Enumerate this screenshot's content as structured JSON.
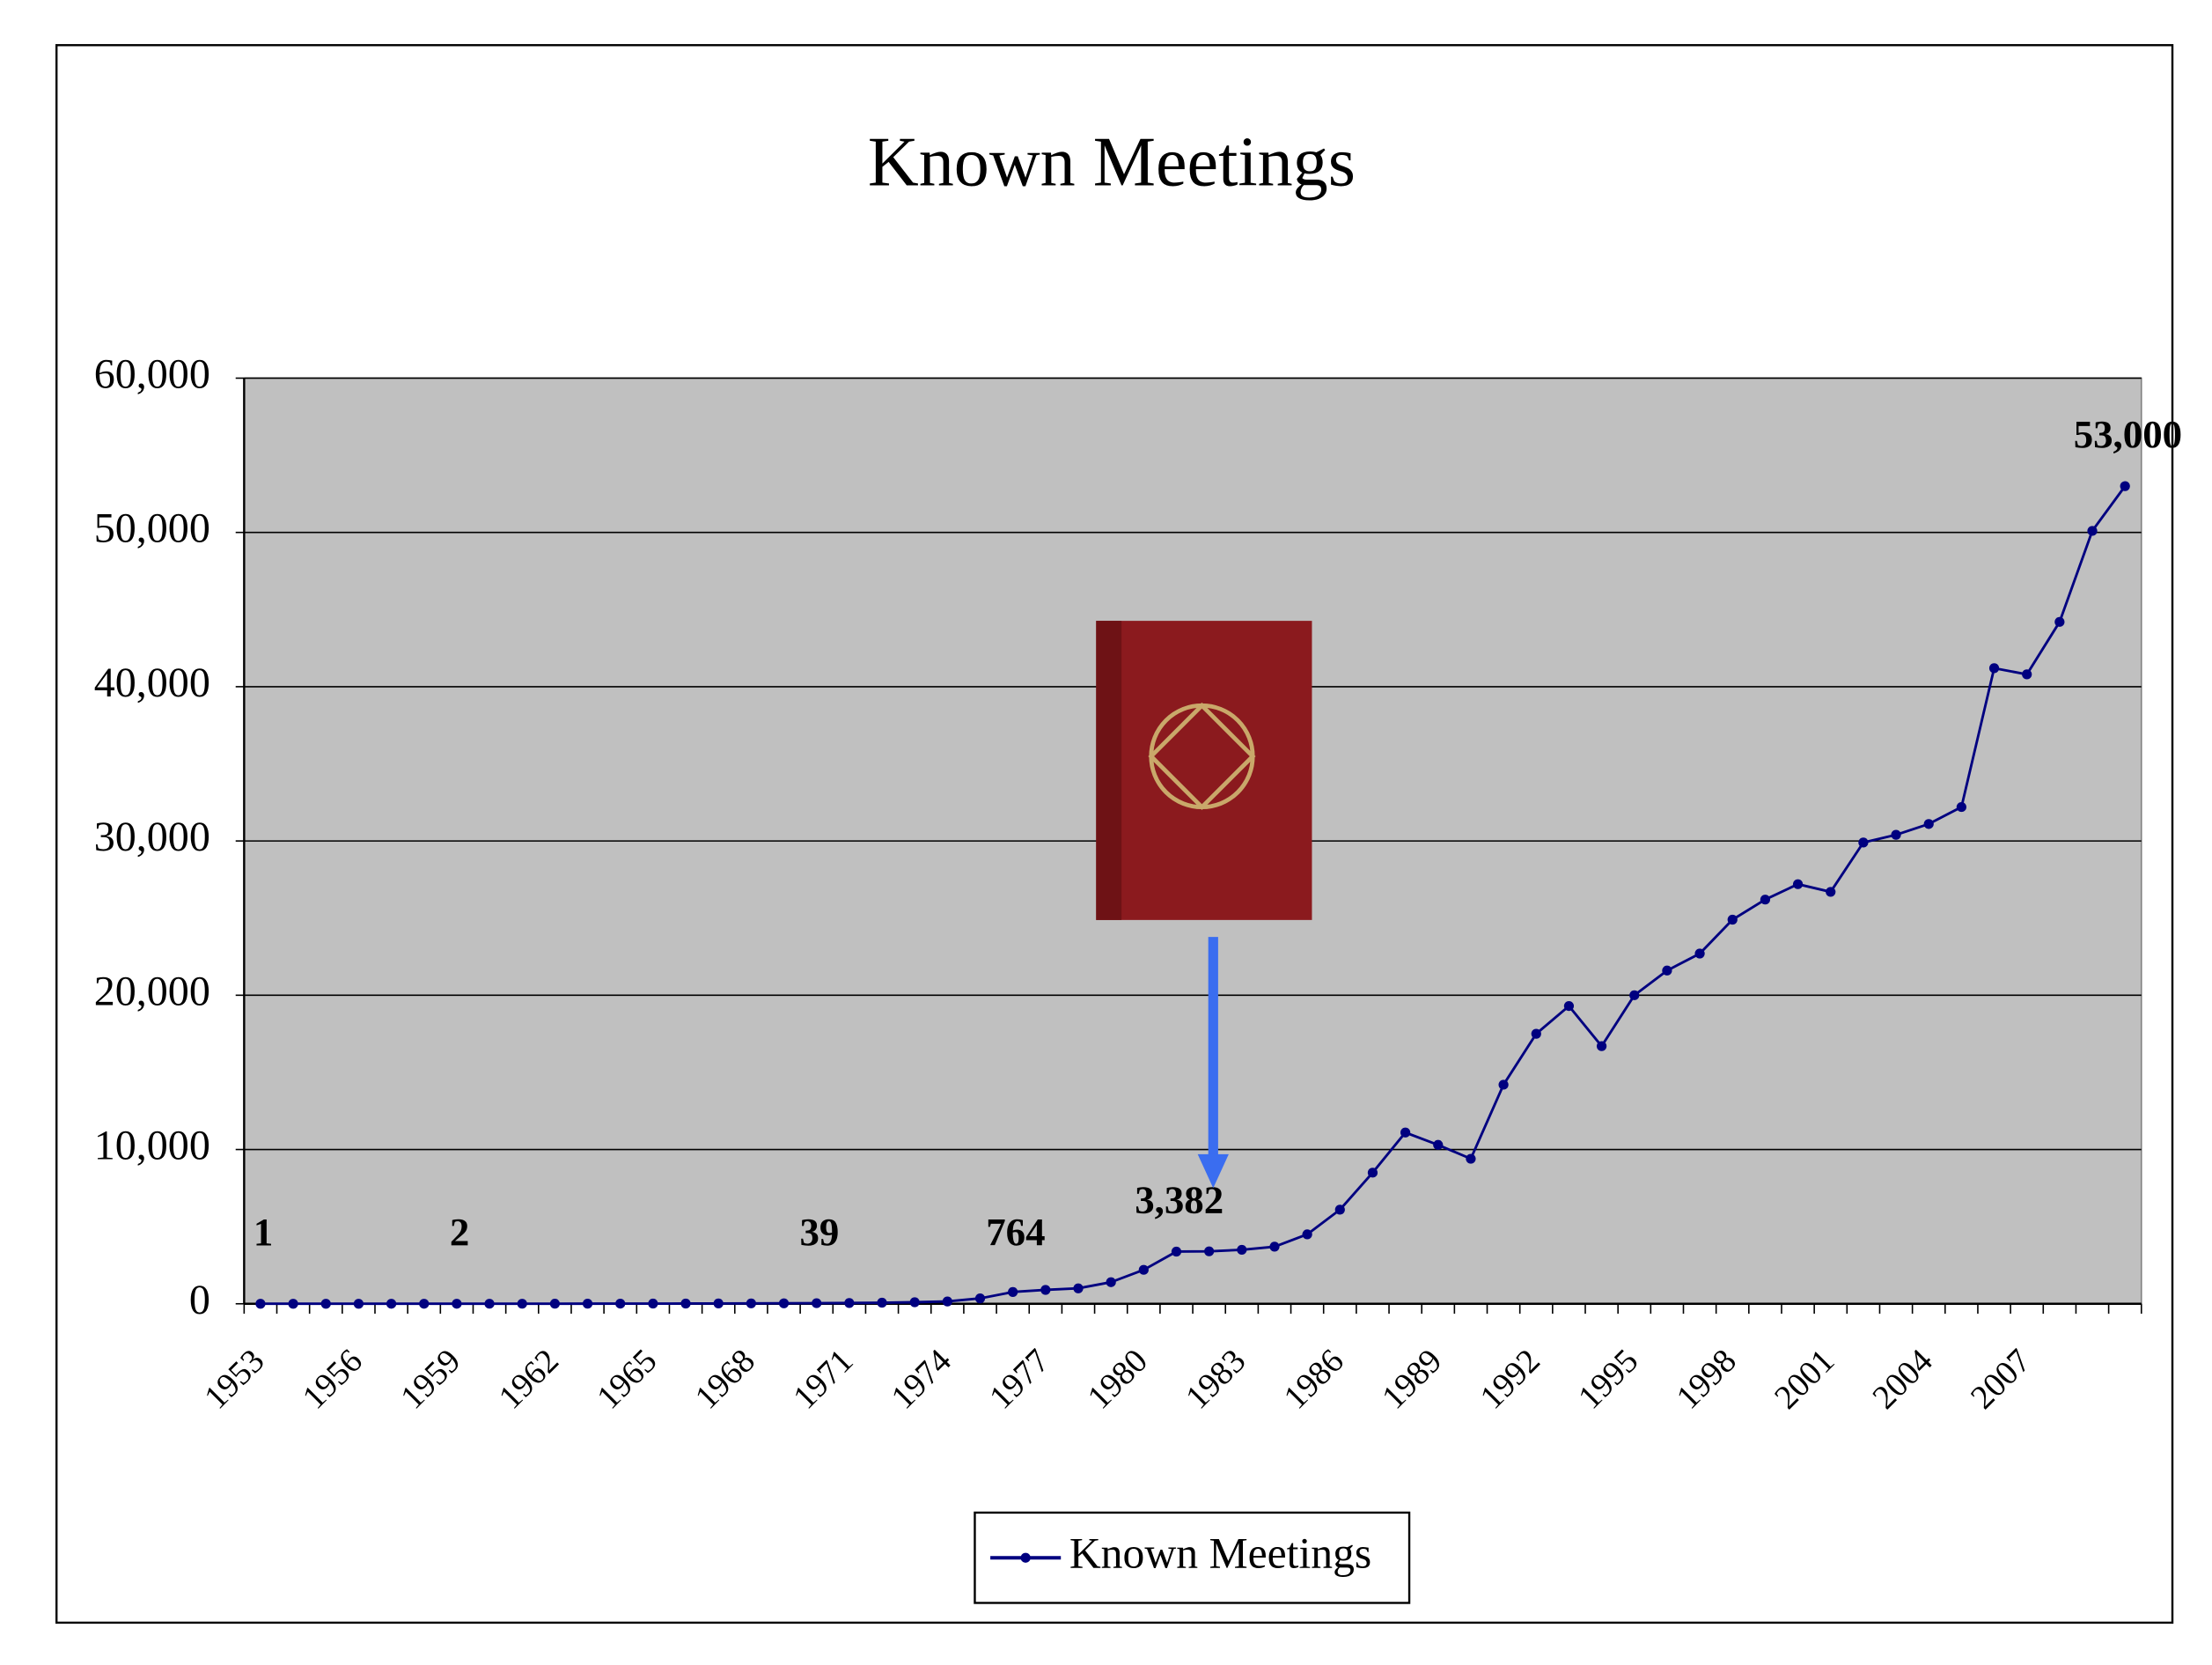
{
  "chart_data": {
    "type": "line",
    "title": "Known Meetings",
    "categories": [
      "1953",
      null,
      null,
      "1956",
      null,
      null,
      "1959",
      null,
      null,
      "1962",
      null,
      null,
      "1965",
      null,
      null,
      "1968",
      null,
      null,
      "1971",
      null,
      null,
      "1974",
      null,
      null,
      "1977",
      null,
      null,
      "1980",
      null,
      null,
      "1983",
      null,
      null,
      "1986",
      null,
      null,
      "1989",
      null,
      null,
      "1992",
      null,
      null,
      "1995",
      null,
      null,
      "1998",
      null,
      null,
      "2001",
      null,
      null,
      "2004",
      null,
      null,
      "2007",
      null,
      null,
      null
    ],
    "series": [
      {
        "name": "Known Meetings",
        "color": "#000080",
        "values": [
          1,
          1,
          1,
          1,
          2,
          2,
          2,
          3,
          4,
          5,
          7,
          9,
          12,
          15,
          20,
          25,
          30,
          39,
          50,
          70,
          100,
          150,
          350,
          764,
          900,
          1000,
          1400,
          2200,
          3382,
          3400,
          3500,
          3700,
          4500,
          6100,
          8500,
          11100,
          10300,
          9400,
          14200,
          17500,
          19300,
          16700,
          20000,
          21600,
          22700,
          24900,
          26200,
          27200,
          26700,
          29900,
          30400,
          31100,
          32200,
          41200,
          40800,
          44200,
          50100,
          53000
        ],
        "value_labels": [
          "1",
          null,
          null,
          null,
          null,
          null,
          "2",
          null,
          null,
          null,
          null,
          null,
          null,
          null,
          null,
          null,
          null,
          "39",
          null,
          null,
          null,
          null,
          null,
          "764",
          null,
          null,
          null,
          null,
          "3,382",
          null,
          null,
          null,
          null,
          null,
          null,
          null,
          null,
          null,
          null,
          null,
          null,
          null,
          null,
          null,
          null,
          null,
          null,
          null,
          null,
          null,
          null,
          null,
          null,
          null,
          null,
          null,
          null,
          "53,000"
        ]
      }
    ],
    "ylim": [
      0,
      60000
    ],
    "yticks": [
      0,
      {
        "value": 10000,
        "label": "10,000"
      },
      {
        "value": 20000,
        "label": "20,000"
      },
      {
        "value": 30000,
        "label": "30,000"
      },
      {
        "value": 40000,
        "label": "40,000"
      },
      {
        "value": 50000,
        "label": "50,000"
      },
      {
        "value": 60000,
        "label": "60,000"
      }
    ],
    "grid": true,
    "plot_background": "#c0c0c0",
    "legend": "bottom"
  }
}
